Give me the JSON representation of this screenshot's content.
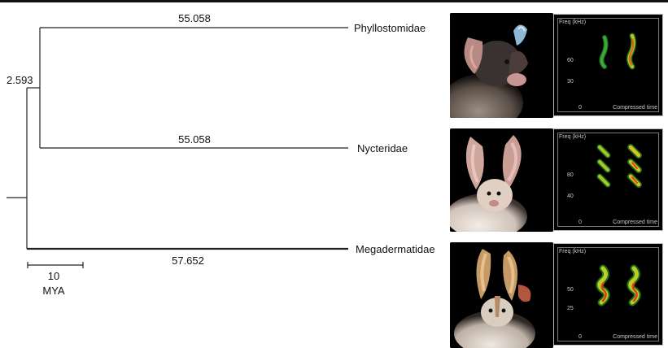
{
  "tree": {
    "root_branch_label": "2.593",
    "taxa": [
      {
        "name": "Phyllostomidae",
        "branch_length": "55.058"
      },
      {
        "name": "Nycteridae",
        "branch_length": "55.058"
      },
      {
        "name": "Megadermatidae",
        "branch_length": "57.652"
      }
    ],
    "scale_bar": {
      "value": "10",
      "unit": "MYA"
    }
  },
  "spectrograms": [
    {
      "freq_label": "Freq (kHz)",
      "ticks": [
        "60",
        "30"
      ],
      "zero": "0",
      "time_label": "Compressed time"
    },
    {
      "freq_label": "Freq (kHz)",
      "ticks": [
        "80",
        "40"
      ],
      "zero": "0",
      "time_label": "Compressed time"
    },
    {
      "freq_label": "Freq (kHz)",
      "ticks": [
        "50",
        "25"
      ],
      "zero": "0",
      "time_label": "Compressed time"
    }
  ],
  "photos": [
    {
      "icon": "bat-photo-phyllostomidae",
      "bg": "#000000"
    },
    {
      "icon": "bat-photo-nycteridae",
      "bg": "#000000"
    },
    {
      "icon": "bat-photo-megadermatidae",
      "bg": "#000000"
    }
  ]
}
